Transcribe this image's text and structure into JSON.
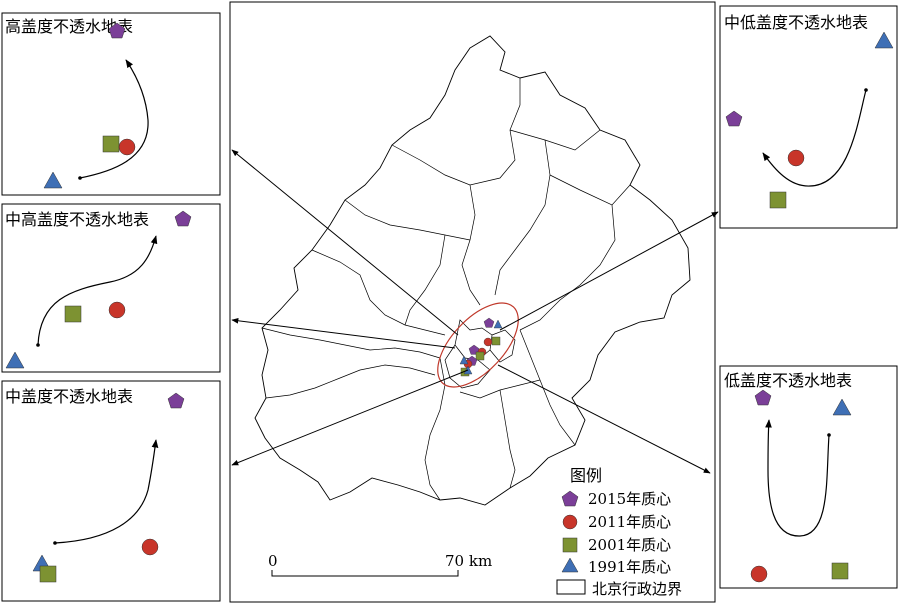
{
  "colors": {
    "p2015": "#7b3f98",
    "p2011": "#c8352a",
    "p2001": "#7d9232",
    "p1991": "#3f6fb5",
    "ellipse": "#c0392b"
  },
  "panels": {
    "high": "高盖度不透水地表",
    "midhigh": "中高盖度不透水地表",
    "mid": "中盖度不透水地表",
    "midlow": "中低盖度不透水地表",
    "low": "低盖度不透水地表"
  },
  "legend": {
    "title": "图例",
    "items": [
      "2015年质心",
      "2011年质心",
      "2001年质心",
      "1991年质心"
    ],
    "boundary": "北京行政边界"
  },
  "scale": {
    "start": "0",
    "end": "70 km"
  }
}
